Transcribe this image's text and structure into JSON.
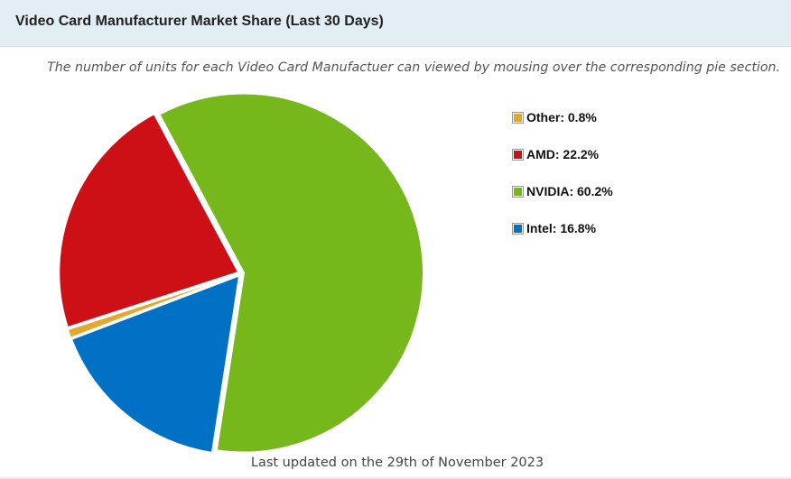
{
  "header": {
    "title": "Video Card Manufacturer Market Share (Last 30 Days)"
  },
  "subtitle": "The number of units for each Video Card Manufactuer can viewed by mousing over the corresponding pie section.",
  "footer": "Last updated on the 29th of November 2023",
  "chart_data": {
    "type": "pie",
    "title": "Video Card Manufacturer Market Share (Last 30 Days)",
    "slices": [
      {
        "label": "Other",
        "value": 0.8,
        "color": "#e0a82e",
        "legend_text": "Other: 0.8%"
      },
      {
        "label": "AMD",
        "value": 22.2,
        "color": "#cc1016",
        "legend_text": "AMD: 22.2%"
      },
      {
        "label": "NVIDIA",
        "value": 60.2,
        "color": "#76b81c",
        "legend_text": "NVIDIA: 60.2%"
      },
      {
        "label": "Intel",
        "value": 16.8,
        "color": "#0071c5",
        "legend_text": "Intel: 16.8%"
      }
    ],
    "legend_position": "right"
  }
}
